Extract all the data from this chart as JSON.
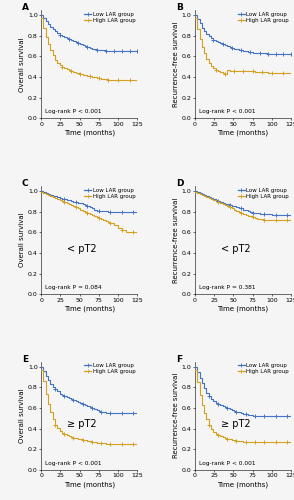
{
  "panels": [
    {
      "label": "A",
      "ylabel": "Overall survival",
      "xlabel": "Time (months)",
      "pvalue": "Log-rank P < 0.001",
      "annotation": null,
      "low_lar": {
        "x": [
          0,
          3,
          6,
          9,
          12,
          15,
          18,
          21,
          24,
          27,
          30,
          33,
          36,
          39,
          42,
          45,
          48,
          51,
          54,
          57,
          60,
          63,
          66,
          69,
          72,
          75,
          78,
          81,
          84,
          87,
          90,
          95,
          100,
          105,
          110,
          115,
          120,
          125
        ],
        "y": [
          1.0,
          0.97,
          0.94,
          0.91,
          0.89,
          0.87,
          0.85,
          0.83,
          0.81,
          0.8,
          0.79,
          0.78,
          0.77,
          0.76,
          0.75,
          0.74,
          0.73,
          0.72,
          0.71,
          0.7,
          0.69,
          0.68,
          0.67,
          0.67,
          0.66,
          0.66,
          0.66,
          0.66,
          0.65,
          0.65,
          0.65,
          0.65,
          0.65,
          0.65,
          0.65,
          0.65,
          0.65,
          0.65
        ]
      },
      "high_lar": {
        "x": [
          0,
          3,
          6,
          9,
          12,
          15,
          18,
          21,
          24,
          27,
          30,
          33,
          36,
          39,
          42,
          45,
          48,
          51,
          54,
          57,
          60,
          63,
          66,
          69,
          72,
          75,
          78,
          81,
          84,
          87,
          90,
          95,
          100,
          105,
          110,
          115,
          120,
          125
        ],
        "y": [
          0.97,
          0.88,
          0.79,
          0.72,
          0.66,
          0.61,
          0.57,
          0.54,
          0.52,
          0.5,
          0.49,
          0.48,
          0.47,
          0.46,
          0.45,
          0.44,
          0.44,
          0.43,
          0.42,
          0.42,
          0.41,
          0.41,
          0.4,
          0.4,
          0.39,
          0.39,
          0.38,
          0.38,
          0.38,
          0.37,
          0.37,
          0.37,
          0.37,
          0.37,
          0.37,
          0.37,
          0.37,
          0.37
        ]
      },
      "censor_low_x": [
        24,
        36,
        48,
        60,
        72,
        84,
        95,
        105,
        115,
        125
      ],
      "censor_low_y": [
        0.81,
        0.77,
        0.73,
        0.69,
        0.66,
        0.65,
        0.65,
        0.65,
        0.65,
        0.65
      ],
      "censor_high_x": [
        27,
        39,
        51,
        63,
        75,
        87,
        100,
        115
      ],
      "censor_high_y": [
        0.5,
        0.46,
        0.43,
        0.41,
        0.39,
        0.37,
        0.37,
        0.37
      ]
    },
    {
      "label": "B",
      "ylabel": "Recurrence-free survival",
      "xlabel": "Time (months)",
      "pvalue": "Log-rank P < 0.001",
      "annotation": null,
      "low_lar": {
        "x": [
          0,
          3,
          6,
          9,
          12,
          15,
          18,
          21,
          24,
          27,
          30,
          33,
          36,
          39,
          42,
          45,
          48,
          51,
          54,
          57,
          60,
          63,
          66,
          69,
          72,
          75,
          78,
          81,
          84,
          87,
          90,
          95,
          100,
          105,
          110,
          115,
          120,
          125
        ],
        "y": [
          1.0,
          0.96,
          0.92,
          0.88,
          0.85,
          0.82,
          0.8,
          0.78,
          0.76,
          0.75,
          0.74,
          0.73,
          0.72,
          0.71,
          0.7,
          0.69,
          0.68,
          0.67,
          0.67,
          0.66,
          0.66,
          0.65,
          0.65,
          0.64,
          0.64,
          0.63,
          0.63,
          0.63,
          0.63,
          0.63,
          0.63,
          0.62,
          0.62,
          0.62,
          0.62,
          0.62,
          0.62,
          0.62
        ]
      },
      "high_lar": {
        "x": [
          0,
          3,
          6,
          9,
          12,
          15,
          18,
          21,
          24,
          27,
          30,
          33,
          36,
          39,
          42,
          45,
          48,
          51,
          54,
          57,
          60,
          63,
          66,
          69,
          72,
          75,
          78,
          81,
          84,
          87,
          90,
          95,
          100,
          105,
          110,
          115,
          120,
          125
        ],
        "y": [
          0.97,
          0.87,
          0.77,
          0.69,
          0.63,
          0.58,
          0.54,
          0.51,
          0.49,
          0.47,
          0.46,
          0.45,
          0.44,
          0.43,
          0.47,
          0.46,
          0.46,
          0.46,
          0.46,
          0.46,
          0.46,
          0.46,
          0.46,
          0.46,
          0.46,
          0.46,
          0.45,
          0.45,
          0.45,
          0.45,
          0.45,
          0.44,
          0.44,
          0.44,
          0.44,
          0.44,
          0.44,
          0.44
        ]
      },
      "censor_low_x": [
        24,
        36,
        48,
        60,
        72,
        84,
        95,
        105,
        115,
        125
      ],
      "censor_low_y": [
        0.76,
        0.72,
        0.68,
        0.66,
        0.64,
        0.63,
        0.62,
        0.62,
        0.62,
        0.62
      ],
      "censor_high_x": [
        27,
        39,
        51,
        63,
        75,
        87,
        100,
        115
      ],
      "censor_high_y": [
        0.47,
        0.43,
        0.46,
        0.46,
        0.46,
        0.45,
        0.44,
        0.44
      ]
    },
    {
      "label": "C",
      "ylabel": "Overall survival",
      "xlabel": "Time (months)",
      "pvalue": "Log-rank P = 0.084",
      "annotation": "< pT2",
      "low_lar": {
        "x": [
          0,
          3,
          6,
          9,
          12,
          15,
          18,
          21,
          24,
          27,
          30,
          33,
          36,
          39,
          42,
          45,
          48,
          51,
          54,
          57,
          60,
          63,
          66,
          69,
          72,
          75,
          78,
          81,
          84,
          87,
          90,
          95,
          100,
          105,
          110,
          115,
          120,
          125
        ],
        "y": [
          1.0,
          0.99,
          0.98,
          0.97,
          0.96,
          0.95,
          0.95,
          0.94,
          0.93,
          0.92,
          0.92,
          0.91,
          0.91,
          0.9,
          0.89,
          0.89,
          0.88,
          0.88,
          0.87,
          0.86,
          0.85,
          0.84,
          0.83,
          0.82,
          0.81,
          0.81,
          0.81,
          0.81,
          0.81,
          0.8,
          0.8,
          0.8,
          0.8,
          0.8,
          0.8,
          0.8,
          0.8,
          0.8
        ]
      },
      "high_lar": {
        "x": [
          0,
          3,
          6,
          9,
          12,
          15,
          18,
          21,
          24,
          27,
          30,
          33,
          36,
          39,
          42,
          45,
          48,
          51,
          54,
          57,
          60,
          63,
          66,
          69,
          72,
          75,
          78,
          81,
          84,
          87,
          90,
          95,
          100,
          105,
          110,
          115,
          120,
          125
        ],
        "y": [
          0.99,
          0.98,
          0.97,
          0.96,
          0.95,
          0.94,
          0.93,
          0.92,
          0.91,
          0.9,
          0.89,
          0.88,
          0.87,
          0.86,
          0.85,
          0.84,
          0.83,
          0.82,
          0.81,
          0.8,
          0.79,
          0.78,
          0.77,
          0.76,
          0.75,
          0.74,
          0.73,
          0.72,
          0.71,
          0.7,
          0.69,
          0.67,
          0.64,
          0.62,
          0.6,
          0.6,
          0.6,
          0.6
        ]
      },
      "censor_low_x": [
        30,
        45,
        60,
        75,
        90,
        105,
        120
      ],
      "censor_low_y": [
        0.92,
        0.89,
        0.85,
        0.81,
        0.8,
        0.8,
        0.8
      ],
      "censor_high_x": [
        30,
        45,
        60,
        75,
        90,
        105,
        120
      ],
      "censor_high_y": [
        0.89,
        0.84,
        0.79,
        0.74,
        0.69,
        0.62,
        0.6
      ]
    },
    {
      "label": "D",
      "ylabel": "Recurrence-free survival",
      "xlabel": "Time (months)",
      "pvalue": "Log-rank P = 0.381",
      "annotation": "< pT2",
      "low_lar": {
        "x": [
          0,
          3,
          6,
          9,
          12,
          15,
          18,
          21,
          24,
          27,
          30,
          33,
          36,
          39,
          42,
          45,
          48,
          51,
          54,
          57,
          60,
          63,
          66,
          69,
          72,
          75,
          78,
          81,
          84,
          87,
          90,
          95,
          100,
          105,
          110,
          115,
          120,
          125
        ],
        "y": [
          1.0,
          0.99,
          0.98,
          0.97,
          0.96,
          0.95,
          0.94,
          0.93,
          0.92,
          0.91,
          0.9,
          0.89,
          0.88,
          0.87,
          0.87,
          0.86,
          0.85,
          0.85,
          0.84,
          0.83,
          0.83,
          0.82,
          0.82,
          0.81,
          0.8,
          0.79,
          0.79,
          0.79,
          0.78,
          0.78,
          0.78,
          0.78,
          0.77,
          0.77,
          0.77,
          0.77,
          0.77,
          0.77
        ]
      },
      "high_lar": {
        "x": [
          0,
          3,
          6,
          9,
          12,
          15,
          18,
          21,
          24,
          27,
          30,
          33,
          36,
          39,
          42,
          45,
          48,
          51,
          54,
          57,
          60,
          63,
          66,
          69,
          72,
          75,
          78,
          81,
          84,
          87,
          90,
          95,
          100,
          105,
          110,
          115,
          120,
          125
        ],
        "y": [
          0.99,
          0.98,
          0.97,
          0.96,
          0.95,
          0.94,
          0.93,
          0.92,
          0.91,
          0.9,
          0.89,
          0.88,
          0.87,
          0.86,
          0.85,
          0.84,
          0.83,
          0.82,
          0.81,
          0.8,
          0.79,
          0.78,
          0.77,
          0.76,
          0.76,
          0.75,
          0.74,
          0.73,
          0.73,
          0.73,
          0.72,
          0.72,
          0.72,
          0.72,
          0.72,
          0.72,
          0.72,
          0.72
        ]
      },
      "censor_low_x": [
        30,
        45,
        60,
        75,
        90,
        105,
        120
      ],
      "censor_low_y": [
        0.9,
        0.86,
        0.83,
        0.79,
        0.78,
        0.77,
        0.77
      ],
      "censor_high_x": [
        30,
        45,
        60,
        75,
        90,
        105,
        120
      ],
      "censor_high_y": [
        0.89,
        0.84,
        0.79,
        0.75,
        0.72,
        0.72,
        0.72
      ]
    },
    {
      "label": "E",
      "ylabel": "Overall survival",
      "xlabel": "Time (months)",
      "pvalue": "Log-rank P < 0.001",
      "annotation": "≥ pT2",
      "low_lar": {
        "x": [
          0,
          3,
          6,
          9,
          12,
          15,
          18,
          21,
          24,
          27,
          30,
          33,
          36,
          39,
          42,
          45,
          48,
          51,
          54,
          57,
          60,
          63,
          66,
          69,
          72,
          75,
          78,
          81,
          84,
          87,
          90,
          95,
          100,
          105,
          110,
          115,
          120,
          125
        ],
        "y": [
          1.0,
          0.96,
          0.91,
          0.87,
          0.83,
          0.8,
          0.78,
          0.76,
          0.74,
          0.73,
          0.72,
          0.71,
          0.7,
          0.69,
          0.68,
          0.67,
          0.66,
          0.65,
          0.64,
          0.63,
          0.62,
          0.61,
          0.6,
          0.59,
          0.58,
          0.57,
          0.56,
          0.56,
          0.55,
          0.55,
          0.55,
          0.55,
          0.55,
          0.55,
          0.55,
          0.55,
          0.55,
          0.55
        ]
      },
      "high_lar": {
        "x": [
          0,
          3,
          6,
          9,
          12,
          15,
          18,
          21,
          24,
          27,
          30,
          33,
          36,
          39,
          42,
          45,
          48,
          51,
          54,
          57,
          60,
          63,
          66,
          69,
          72,
          75,
          78,
          81,
          84,
          87,
          90,
          95,
          100,
          105,
          110,
          115,
          120,
          125
        ],
        "y": [
          0.97,
          0.86,
          0.74,
          0.64,
          0.56,
          0.49,
          0.44,
          0.41,
          0.38,
          0.36,
          0.35,
          0.34,
          0.33,
          0.32,
          0.31,
          0.31,
          0.3,
          0.3,
          0.29,
          0.29,
          0.28,
          0.28,
          0.27,
          0.27,
          0.26,
          0.26,
          0.26,
          0.26,
          0.25,
          0.25,
          0.25,
          0.25,
          0.25,
          0.25,
          0.25,
          0.25,
          0.25,
          0.25
        ]
      },
      "censor_low_x": [
        18,
        30,
        42,
        54,
        66,
        78,
        90,
        105,
        120
      ],
      "censor_low_y": [
        0.78,
        0.72,
        0.68,
        0.64,
        0.6,
        0.56,
        0.55,
        0.55,
        0.55
      ],
      "censor_high_x": [
        18,
        30,
        42,
        54,
        66,
        78,
        90,
        105,
        120
      ],
      "censor_high_y": [
        0.44,
        0.35,
        0.31,
        0.29,
        0.27,
        0.26,
        0.25,
        0.25,
        0.25
      ]
    },
    {
      "label": "F",
      "ylabel": "Recurrence-free survival",
      "xlabel": "Time (months)",
      "pvalue": "Log-rank P < 0.001",
      "annotation": "≥ pT2",
      "low_lar": {
        "x": [
          0,
          3,
          6,
          9,
          12,
          15,
          18,
          21,
          24,
          27,
          30,
          33,
          36,
          39,
          42,
          45,
          48,
          51,
          54,
          57,
          60,
          63,
          66,
          69,
          72,
          75,
          78,
          81,
          84,
          87,
          90,
          95,
          100,
          105,
          110,
          115,
          120,
          125
        ],
        "y": [
          1.0,
          0.95,
          0.89,
          0.84,
          0.79,
          0.75,
          0.72,
          0.69,
          0.67,
          0.65,
          0.64,
          0.63,
          0.62,
          0.61,
          0.6,
          0.59,
          0.58,
          0.57,
          0.56,
          0.56,
          0.55,
          0.54,
          0.54,
          0.53,
          0.53,
          0.52,
          0.52,
          0.52,
          0.52,
          0.52,
          0.52,
          0.52,
          0.52,
          0.52,
          0.52,
          0.52,
          0.52,
          0.52
        ]
      },
      "high_lar": {
        "x": [
          0,
          3,
          6,
          9,
          12,
          15,
          18,
          21,
          24,
          27,
          30,
          33,
          36,
          39,
          42,
          45,
          48,
          51,
          54,
          57,
          60,
          63,
          66,
          69,
          72,
          75,
          78,
          81,
          84,
          87,
          90,
          95,
          100,
          105,
          110,
          115,
          120,
          125
        ],
        "y": [
          0.97,
          0.85,
          0.73,
          0.63,
          0.55,
          0.49,
          0.44,
          0.4,
          0.37,
          0.35,
          0.34,
          0.33,
          0.32,
          0.31,
          0.3,
          0.3,
          0.29,
          0.29,
          0.28,
          0.28,
          0.28,
          0.27,
          0.27,
          0.27,
          0.27,
          0.27,
          0.27,
          0.27,
          0.27,
          0.27,
          0.27,
          0.27,
          0.27,
          0.27,
          0.27,
          0.27,
          0.27,
          0.27
        ]
      },
      "censor_low_x": [
        18,
        30,
        42,
        54,
        66,
        78,
        90,
        105,
        120
      ],
      "censor_low_y": [
        0.72,
        0.64,
        0.6,
        0.56,
        0.54,
        0.52,
        0.52,
        0.52,
        0.52
      ],
      "censor_high_x": [
        18,
        30,
        42,
        54,
        66,
        78,
        90,
        105,
        120
      ],
      "censor_high_y": [
        0.44,
        0.34,
        0.3,
        0.28,
        0.27,
        0.27,
        0.27,
        0.27,
        0.27
      ]
    }
  ],
  "low_color": "#4472c4",
  "high_color": "#d4a020",
  "bg_color": "#f5f5f5",
  "xlim": [
    0,
    125
  ],
  "ylim": [
    0.0,
    1.05
  ],
  "ytick_max": 1.0,
  "xticks": [
    0,
    25,
    50,
    75,
    100,
    125
  ],
  "yticks": [
    0.0,
    0.2,
    0.4,
    0.6,
    0.8,
    1.0
  ],
  "tick_fontsize": 4.5,
  "label_fontsize": 5.0,
  "legend_fontsize": 4.0,
  "pvalue_fontsize": 4.2,
  "annotation_fontsize": 7,
  "panel_label_fontsize": 6.5,
  "linewidth": 0.8,
  "censor_marker": "+",
  "censor_size": 2.5
}
